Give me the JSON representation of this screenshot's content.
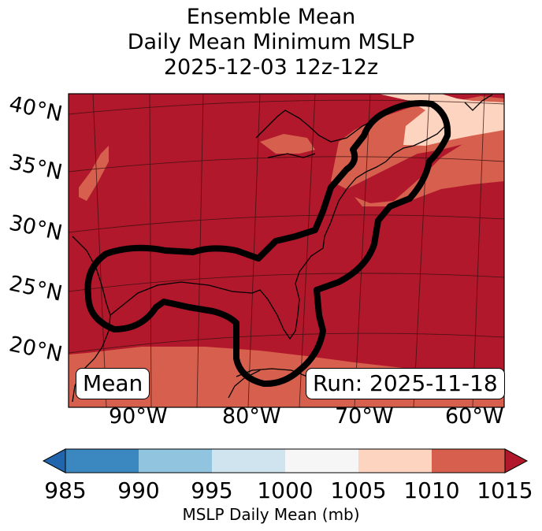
{
  "title": {
    "line1": "Ensemble Mean",
    "line2": "Daily Mean Minimum MSLP",
    "line3": "2025-12-03 12z-12z"
  },
  "map": {
    "lat_labels": [
      "40°N",
      "35°N",
      "30°N",
      "25°N",
      "20°N"
    ],
    "lon_labels": [
      "90°W",
      "80°W",
      "70°W",
      "60°W"
    ],
    "mean_label": "Mean",
    "run_label": "Run: 2025-11-18"
  },
  "colorbar": {
    "ticks": [
      "985",
      "990",
      "995",
      "1000",
      "1005",
      "1010",
      "1015"
    ],
    "bins": [
      {
        "range": "985-990",
        "color": "#3b88c0"
      },
      {
        "range": "990-995",
        "color": "#90c4df"
      },
      {
        "range": "995-1000",
        "color": "#d0e4f0"
      },
      {
        "range": "1000-1005",
        "color": "#f6f6f6"
      },
      {
        "range": "1005-1010",
        "color": "#fdd4bf"
      },
      {
        "range": "1010-1015",
        "color": "#d6604d"
      }
    ],
    "under_color": "#2166ac",
    "over_color": "#b2182b",
    "label": "MSLP Daily Mean (mb)"
  }
}
